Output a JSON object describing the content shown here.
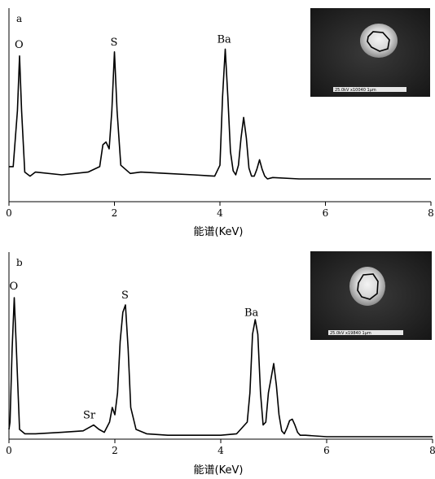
{
  "chart_data": [
    {
      "type": "line",
      "panel_label": "a",
      "xlabel": "能谱(KeV)",
      "xlim": [
        0,
        8
      ],
      "x_ticks": [
        "0",
        "2",
        "4",
        "6",
        "8"
      ],
      "grid": false,
      "peaks": [
        {
          "label": "O",
          "x": 0.2
        },
        {
          "label": "S",
          "x": 2.0
        },
        {
          "label": "Ba",
          "x": 4.1
        }
      ],
      "inset_scale_text": "25.0kV x10040   1μm",
      "series": [
        {
          "x": [
            0,
            0.08,
            0.16,
            0.2,
            0.24,
            0.3,
            0.4,
            0.5,
            1.0,
            1.5,
            1.72,
            1.78,
            1.84,
            1.9,
            1.95,
            2.0,
            2.05,
            2.12,
            2.3,
            2.5,
            3.0,
            3.5,
            3.9,
            4.0,
            4.05,
            4.1,
            4.15,
            4.2,
            4.25,
            4.3,
            4.35,
            4.4,
            4.45,
            4.5,
            4.55,
            4.6,
            4.65,
            4.7,
            4.75,
            4.8,
            4.85,
            4.9,
            5.0,
            5.5,
            6.0,
            7.0,
            8.0
          ],
          "y": [
            0.09,
            0.09,
            0.5,
            0.9,
            0.5,
            0.05,
            0.02,
            0.05,
            0.03,
            0.05,
            0.09,
            0.25,
            0.27,
            0.22,
            0.5,
            0.93,
            0.5,
            0.1,
            0.04,
            0.05,
            0.04,
            0.03,
            0.02,
            0.1,
            0.6,
            0.95,
            0.6,
            0.2,
            0.06,
            0.03,
            0.1,
            0.3,
            0.45,
            0.3,
            0.08,
            0.02,
            0.02,
            0.07,
            0.14,
            0.07,
            0.02,
            0.0,
            0.01,
            0.0,
            0.0,
            0.0,
            0.0
          ]
        }
      ]
    },
    {
      "type": "line",
      "panel_label": "b",
      "xlabel": "能谱(KeV)",
      "xlim": [
        0,
        8
      ],
      "x_ticks": [
        "0",
        "2",
        "4",
        "6",
        "8"
      ],
      "grid": false,
      "peaks": [
        {
          "label": "O",
          "x": 0.1
        },
        {
          "label": "Sr",
          "x": 1.6
        },
        {
          "label": "S",
          "x": 2.2
        },
        {
          "label": "Ba",
          "x": 4.6
        }
      ],
      "inset_scale_text": "25.0kV x19840   1μm",
      "series": [
        {
          "x": [
            0,
            0.02,
            0.06,
            0.1,
            0.14,
            0.2,
            0.3,
            0.5,
            1.0,
            1.4,
            1.5,
            1.6,
            1.7,
            1.8,
            1.9,
            1.95,
            2.0,
            2.05,
            2.1,
            2.15,
            2.2,
            2.25,
            2.3,
            2.4,
            2.6,
            3.0,
            3.5,
            4.0,
            4.3,
            4.5,
            4.55,
            4.6,
            4.65,
            4.7,
            4.75,
            4.8,
            4.85,
            4.9,
            4.95,
            5.0,
            5.05,
            5.1,
            5.15,
            5.2,
            5.25,
            5.3,
            5.35,
            5.4,
            5.45,
            5.5,
            5.6,
            6.0,
            7.0,
            8.0
          ],
          "y": [
            0.05,
            0.1,
            0.6,
            0.95,
            0.6,
            0.05,
            0.02,
            0.02,
            0.03,
            0.04,
            0.06,
            0.08,
            0.05,
            0.03,
            0.1,
            0.2,
            0.15,
            0.3,
            0.65,
            0.85,
            0.9,
            0.6,
            0.2,
            0.05,
            0.02,
            0.01,
            0.01,
            0.01,
            0.02,
            0.1,
            0.3,
            0.7,
            0.8,
            0.7,
            0.3,
            0.08,
            0.1,
            0.3,
            0.4,
            0.5,
            0.35,
            0.15,
            0.04,
            0.02,
            0.06,
            0.11,
            0.12,
            0.08,
            0.03,
            0.01,
            0.01,
            0.0,
            0.0,
            0.0
          ]
        }
      ]
    }
  ]
}
